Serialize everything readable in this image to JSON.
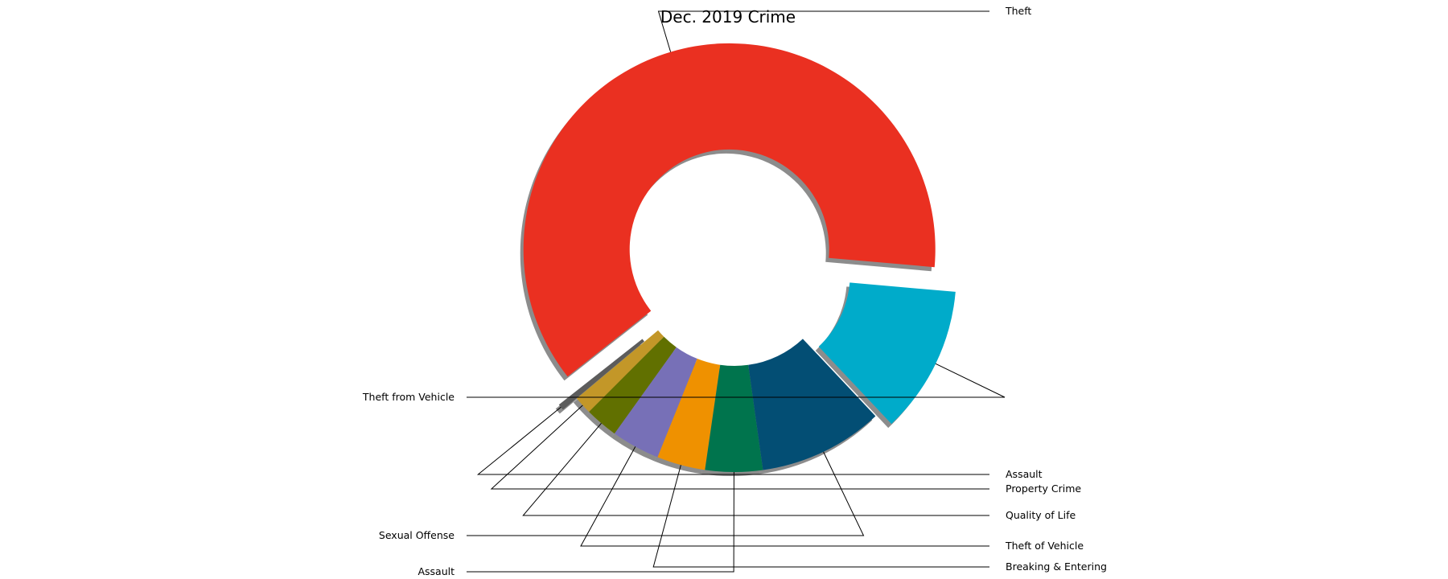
{
  "chart_data": {
    "type": "pie",
    "donut": true,
    "title": "Dec. 2019 Crime",
    "slices": [
      {
        "label": "Theft",
        "value": 62.0,
        "color": "#ea3021",
        "exploded": true
      },
      {
        "label": "Assault",
        "value": 0.5,
        "color": "#5c5c5c",
        "exploded": true
      },
      {
        "label": "Property Crime",
        "value": 1.4,
        "color": "#c39728"
      },
      {
        "label": "Quality of Life",
        "value": 2.6,
        "color": "#617000"
      },
      {
        "label": "Theft of Vehicle",
        "value": 3.8,
        "color": "#7770b7"
      },
      {
        "label": "Breaking & Entering",
        "value": 3.8,
        "color": "#ef9100"
      },
      {
        "label": "Assault",
        "value": 4.5,
        "color": "#00744d"
      },
      {
        "label": "Sexual Offense",
        "value": 9.8,
        "color": "#034e74"
      },
      {
        "label": "Theft from Vehicle",
        "value": 11.6,
        "color": "#00abca",
        "exploded": true
      }
    ]
  }
}
